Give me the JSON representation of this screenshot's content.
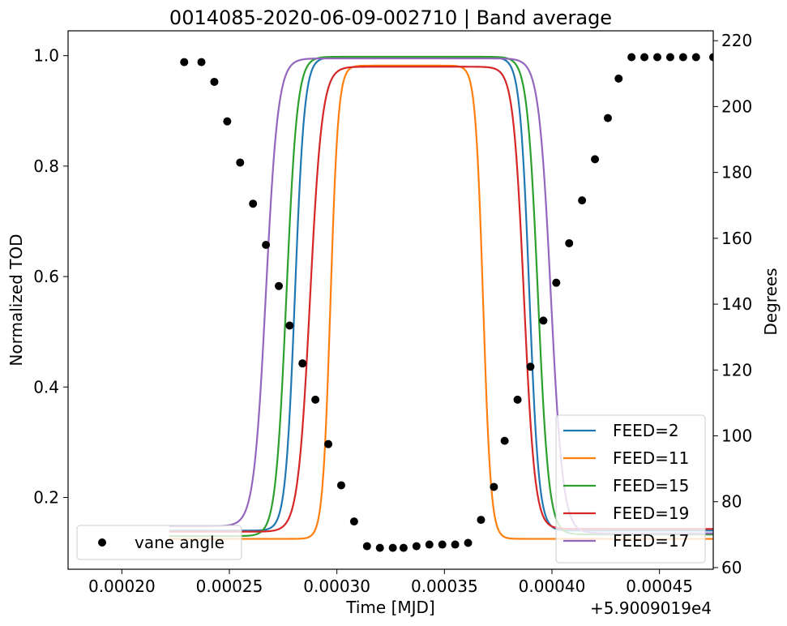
{
  "chart_data": {
    "type": "line",
    "title": "0014085-2020-06-09-002710 | Band average",
    "xlabel": "Time [MJD]",
    "ylabel": "Normalized TOD",
    "y2label": "Degrees",
    "x_offset_label": "+5.9009019e4",
    "xlim": [
      0.000175,
      0.000475
    ],
    "ylim": [
      0.07,
      1.045
    ],
    "y2lim": [
      59.5,
      223
    ],
    "x_ticks": [
      0.0002,
      0.00025,
      0.0003,
      0.00035,
      0.0004,
      0.00045
    ],
    "x_tick_labels": [
      "0.00020",
      "0.00025",
      "0.00030",
      "0.00035",
      "0.00040",
      "0.00045"
    ],
    "y_ticks": [
      0.2,
      0.4,
      0.6,
      0.8,
      1.0
    ],
    "y_tick_labels": [
      "0.2",
      "0.4",
      "0.6",
      "0.8",
      "1.0"
    ],
    "y2_ticks": [
      60,
      80,
      100,
      120,
      140,
      160,
      180,
      200,
      220
    ],
    "y2_tick_labels": [
      "60",
      "80",
      "100",
      "120",
      "140",
      "160",
      "180",
      "200",
      "220"
    ],
    "series": [
      {
        "name": "FEED=2",
        "color": "#1f77b4",
        "low_left": 0.14,
        "low_right": 0.14,
        "high": 0.997,
        "rise_mid": 0.0002805,
        "rise_width": 2.2e-06,
        "fall_mid": 0.0003895,
        "fall_width": 2.2e-06
      },
      {
        "name": "FEED=11",
        "color": "#ff7f0e",
        "low_left": 0.125,
        "low_right": 0.125,
        "high": 0.982,
        "rise_mid": 0.000297,
        "rise_width": 1.8e-06,
        "fall_mid": 0.000368,
        "fall_width": 1.8e-06
      },
      {
        "name": "FEED=15",
        "color": "#2ca02c",
        "low_left": 0.13,
        "low_right": 0.133,
        "high": 0.998,
        "rise_mid": 0.0002765,
        "rise_width": 2.5e-06,
        "fall_mid": 0.0003935,
        "fall_width": 2.5e-06
      },
      {
        "name": "FEED=19",
        "color": "#d62728",
        "low_left": 0.138,
        "low_right": 0.143,
        "high": 0.98,
        "rise_mid": 0.0002875,
        "rise_width": 2.8e-06,
        "fall_mid": 0.000387,
        "fall_width": 2.5e-06
      },
      {
        "name": "FEED=17",
        "color": "#9467bd",
        "low_left": 0.148,
        "low_right": 0.135,
        "high": 0.995,
        "rise_mid": 0.000267,
        "rise_width": 2.8e-06,
        "fall_mid": 0.0003995,
        "fall_width": 2.8e-06
      }
    ],
    "line_x_range": [
      0.000222,
      0.000475
    ],
    "vane": {
      "name": "vane angle",
      "color": "#000000",
      "x": [
        0.000229,
        0.000237,
        0.000243,
        0.000249,
        0.000255,
        0.000261,
        0.000267,
        0.000273,
        0.000278,
        0.000284,
        0.00029,
        0.000296,
        0.000302,
        0.000308,
        0.000314,
        0.00032,
        0.000326,
        0.000331,
        0.000337,
        0.000343,
        0.000349,
        0.000355,
        0.000361,
        0.000367,
        0.000373,
        0.000378,
        0.000384,
        0.00039,
        0.000396,
        0.000402,
        0.000408,
        0.000414,
        0.00042,
        0.000426,
        0.000431,
        0.000437,
        0.000443,
        0.000449,
        0.000455,
        0.000461,
        0.000467,
        0.000475
      ],
      "y": [
        213.5,
        213.5,
        207.5,
        195.5,
        183.0,
        170.5,
        158.0,
        145.5,
        133.5,
        122.0,
        111.0,
        97.5,
        85.0,
        74.0,
        66.5,
        66.0,
        66.0,
        66.0,
        66.5,
        67.0,
        67.0,
        67.0,
        67.5,
        74.5,
        84.5,
        98.5,
        111.0,
        121.0,
        135.0,
        146.5,
        158.5,
        171.5,
        184.0,
        196.5,
        208.5,
        215.0,
        215.0,
        215.0,
        215.0,
        215.0,
        215.0,
        215.0
      ]
    },
    "legend_lines_position": "lower right",
    "legend_vane_position": "lower left",
    "grid": false
  }
}
